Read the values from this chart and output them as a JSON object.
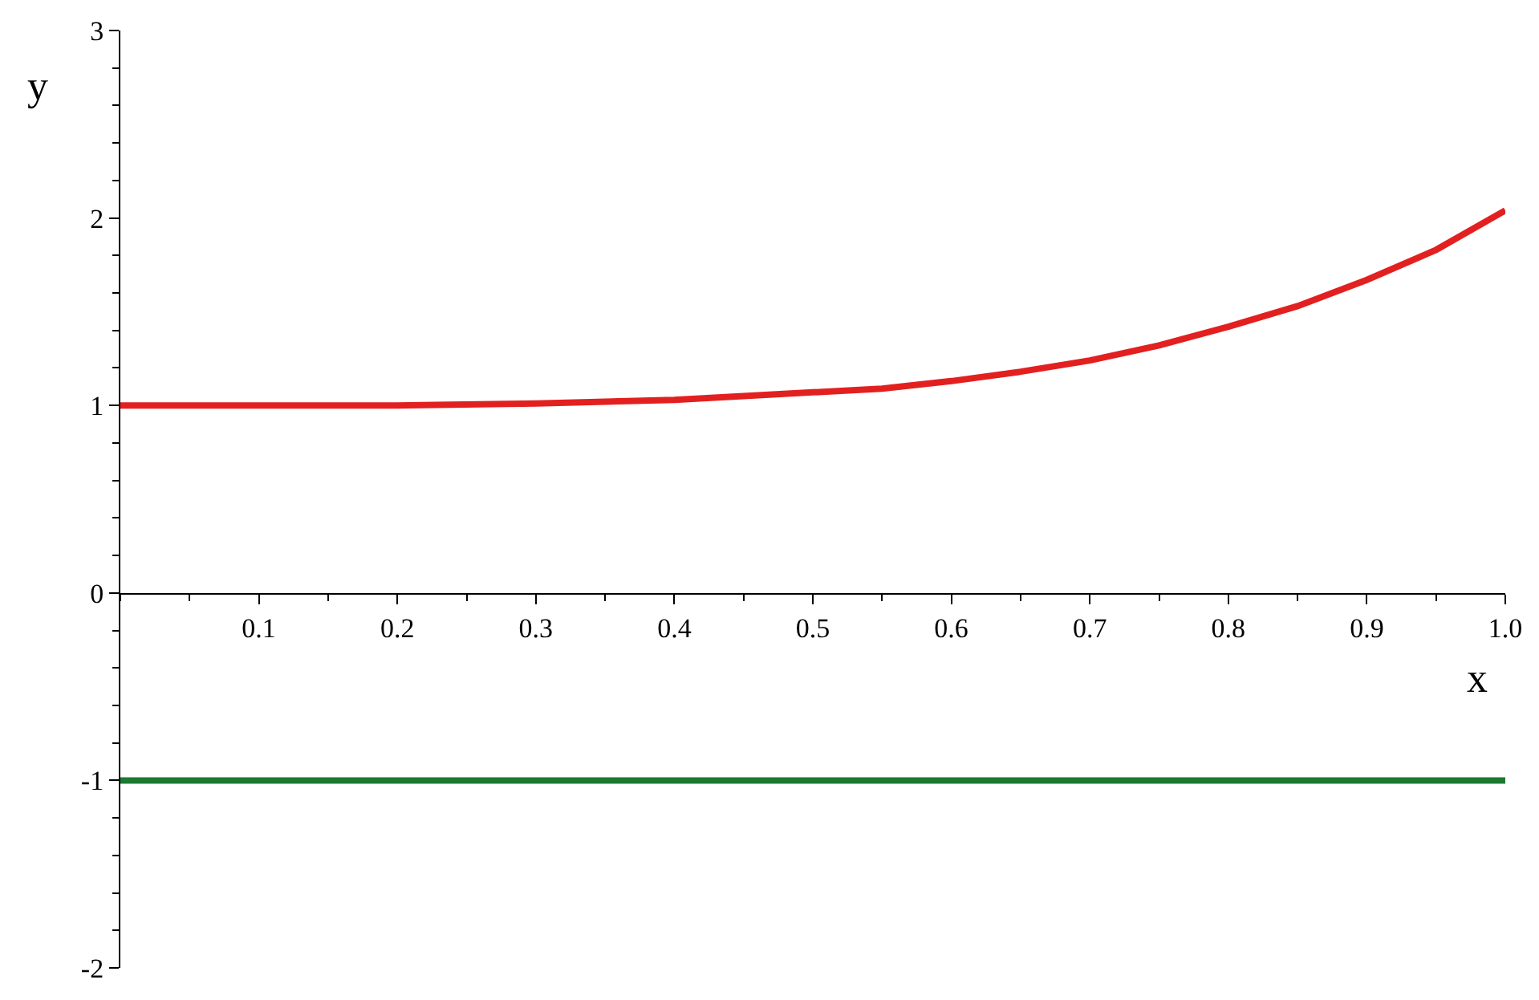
{
  "chart_data": {
    "type": "line",
    "xlabel": "x",
    "ylabel": "y",
    "xlim": [
      0,
      1.0
    ],
    "ylim": [
      -2,
      3
    ],
    "xticks": [
      {
        "value": 0.1,
        "label": "0.1"
      },
      {
        "value": 0.2,
        "label": "0.2"
      },
      {
        "value": 0.3,
        "label": "0.3"
      },
      {
        "value": 0.4,
        "label": "0.4"
      },
      {
        "value": 0.5,
        "label": "0.5"
      },
      {
        "value": 0.6,
        "label": "0.6"
      },
      {
        "value": 0.7,
        "label": "0.7"
      },
      {
        "value": 0.8,
        "label": "0.8"
      },
      {
        "value": 0.9,
        "label": "0.9"
      },
      {
        "value": 1.0,
        "label": "1.0"
      }
    ],
    "yticks": [
      -2,
      -1,
      0,
      1,
      2,
      3
    ],
    "series": [
      {
        "color": "#e32020",
        "x": [
          0,
          0.1,
          0.2,
          0.3,
          0.4,
          0.5,
          0.55,
          0.6,
          0.65,
          0.7,
          0.75,
          0.8,
          0.85,
          0.9,
          0.95,
          1.0
        ],
        "values": [
          1.0,
          1.0,
          1.0,
          1.01,
          1.03,
          1.07,
          1.09,
          1.13,
          1.18,
          1.24,
          1.32,
          1.42,
          1.53,
          1.67,
          1.83,
          2.04
        ]
      },
      {
        "color": "#1a7a32",
        "x": [
          0,
          1.0
        ],
        "values": [
          -1,
          -1
        ]
      }
    ]
  }
}
